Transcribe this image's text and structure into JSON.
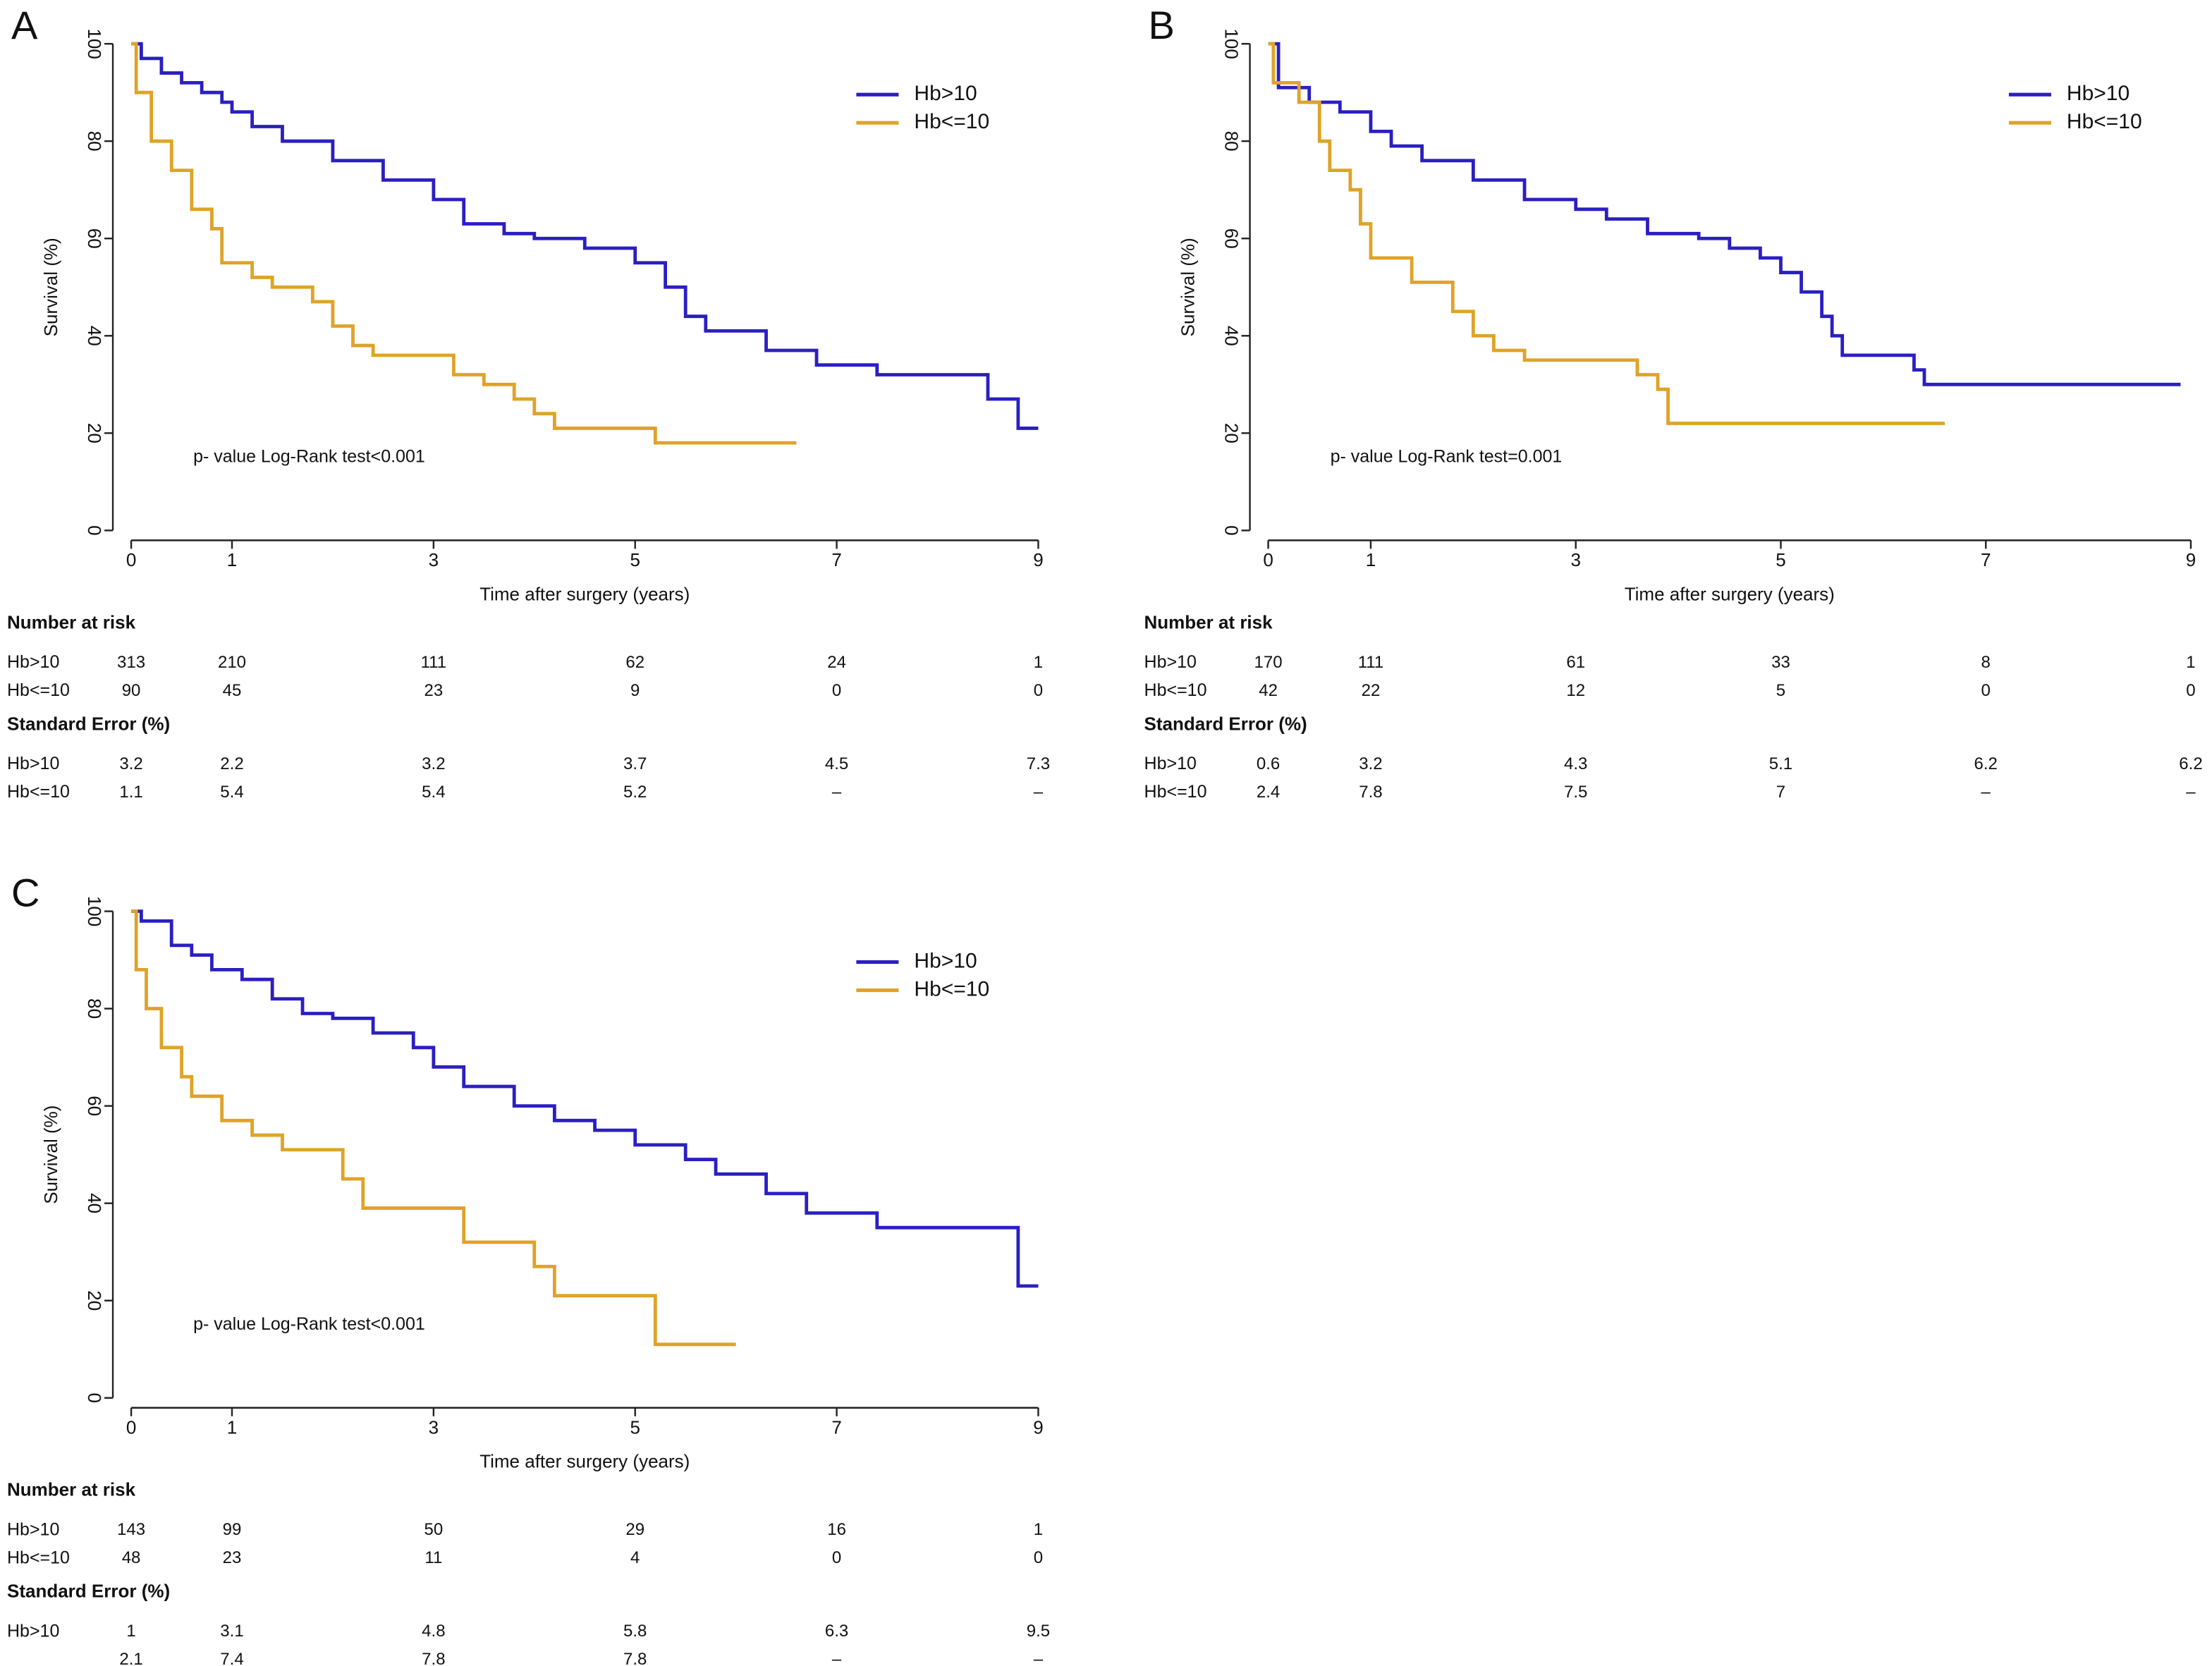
{
  "chart_data": [
    {
      "type": "line",
      "step": true,
      "panel_label": "A",
      "xlabel": "Time after surgery (years)",
      "ylabel": "Survival (%)",
      "annotation": "p- value Log-Rank test<0.001",
      "xlim": [
        0,
        9
      ],
      "ylim": [
        0,
        100
      ],
      "xticks": [
        0,
        1,
        3,
        5,
        7,
        9
      ],
      "yticks": [
        0,
        20,
        40,
        60,
        80,
        100
      ],
      "legend": "upper right",
      "series": [
        {
          "name": "Hb>10",
          "color": "#2b1fc2",
          "x": [
            0,
            0.1,
            0.3,
            0.5,
            0.7,
            0.9,
            1.0,
            1.2,
            1.5,
            2,
            2.5,
            3,
            3.3,
            3.7,
            4,
            4.5,
            5,
            5.3,
            5.5,
            5.7,
            6.3,
            6.8,
            7.4,
            8.5,
            8.8,
            9
          ],
          "values": [
            100,
            97,
            94,
            92,
            90,
            88,
            86,
            83,
            80,
            76,
            72,
            68,
            63,
            61,
            60,
            58,
            55,
            50,
            44,
            41,
            37,
            34,
            32,
            27,
            21,
            21
          ]
        },
        {
          "name": "Hb<=10",
          "color": "#dfa327",
          "x": [
            0,
            0.05,
            0.2,
            0.4,
            0.6,
            0.8,
            0.9,
            1.2,
            1.4,
            1.8,
            2,
            2.2,
            2.4,
            3.2,
            3.5,
            3.8,
            4,
            4.2,
            5.2,
            6.6
          ],
          "values": [
            100,
            90,
            80,
            74,
            66,
            62,
            55,
            52,
            50,
            47,
            42,
            38,
            36,
            32,
            30,
            27,
            24,
            21,
            18,
            18
          ]
        }
      ],
      "risk_table": [
        {
          "title": "Number at risk",
          "rows": [
            {
              "label": "Hb>10",
              "values": [
                313,
                210,
                111,
                62,
                24,
                1
              ]
            },
            {
              "label": "Hb<=10",
              "values": [
                90,
                45,
                23,
                9,
                0,
                0
              ]
            }
          ]
        },
        {
          "title": "Standard Error (%)",
          "rows": [
            {
              "label": "Hb>10",
              "values": [
                3.2,
                2.2,
                3.2,
                3.7,
                4.5,
                7.3
              ]
            },
            {
              "label": "Hb<=10",
              "values": [
                1.1,
                5.4,
                5.4,
                5.2,
                "–",
                "–"
              ]
            }
          ]
        }
      ]
    },
    {
      "type": "line",
      "step": true,
      "panel_label": "B",
      "xlabel": "Time after surgery (years)",
      "ylabel": "Survival (%)",
      "annotation": "p- value Log-Rank test=0.001",
      "xlim": [
        0,
        9
      ],
      "ylim": [
        0,
        100
      ],
      "xticks": [
        0,
        1,
        3,
        5,
        7,
        9
      ],
      "yticks": [
        0,
        20,
        40,
        60,
        80,
        100
      ],
      "legend": "upper right",
      "series": [
        {
          "name": "Hb>10",
          "color": "#2b1fc2",
          "x": [
            0,
            0.1,
            0.4,
            0.7,
            1.0,
            1.2,
            1.5,
            2,
            2.5,
            3,
            3.3,
            3.7,
            4.2,
            4.5,
            4.8,
            5,
            5.2,
            5.4,
            5.5,
            5.6,
            6.3,
            6.4,
            8.9
          ],
          "values": [
            100,
            91,
            88,
            86,
            82,
            79,
            76,
            72,
            68,
            66,
            64,
            61,
            60,
            58,
            56,
            53,
            49,
            44,
            40,
            36,
            33,
            30,
            30
          ]
        },
        {
          "name": "Hb<=10",
          "color": "#dfa327",
          "x": [
            0,
            0.05,
            0.3,
            0.5,
            0.6,
            0.8,
            0.9,
            1.0,
            1.4,
            1.8,
            2.0,
            2.2,
            2.5,
            3.6,
            3.8,
            3.9,
            6.6
          ],
          "values": [
            100,
            92,
            88,
            80,
            74,
            70,
            63,
            56,
            51,
            45,
            40,
            37,
            35,
            32,
            29,
            22,
            22
          ]
        }
      ],
      "risk_table": [
        {
          "title": "Number at risk",
          "rows": [
            {
              "label": "Hb>10",
              "values": [
                170,
                111,
                61,
                33,
                8,
                1
              ]
            },
            {
              "label": "Hb<=10",
              "values": [
                42,
                22,
                12,
                5,
                0,
                0
              ]
            }
          ]
        },
        {
          "title": "Standard Error (%)",
          "rows": [
            {
              "label": "Hb>10",
              "values": [
                0.6,
                3.2,
                4.3,
                5.1,
                6.2,
                6.2
              ]
            },
            {
              "label": "Hb<=10",
              "values": [
                2.4,
                7.8,
                7.5,
                7,
                "–",
                "–"
              ]
            }
          ]
        }
      ]
    },
    {
      "type": "line",
      "step": true,
      "panel_label": "C",
      "xlabel": "Time after surgery (years)",
      "ylabel": "Survival (%)",
      "annotation": "p- value Log-Rank test<0.001",
      "xlim": [
        0,
        9
      ],
      "ylim": [
        0,
        100
      ],
      "xticks": [
        0,
        1,
        3,
        5,
        7,
        9
      ],
      "yticks": [
        0,
        20,
        40,
        60,
        80,
        100
      ],
      "legend": "upper right",
      "series": [
        {
          "name": "Hb>10",
          "color": "#2b1fc2",
          "x": [
            0,
            0.1,
            0.4,
            0.6,
            0.8,
            1.1,
            1.4,
            1.7,
            2,
            2.4,
            2.8,
            3.0,
            3.3,
            3.8,
            4.2,
            4.6,
            5.0,
            5.5,
            5.8,
            6.3,
            6.7,
            7.4,
            8.8,
            9
          ],
          "values": [
            100,
            98,
            93,
            91,
            88,
            86,
            82,
            79,
            78,
            75,
            72,
            68,
            64,
            60,
            57,
            55,
            52,
            49,
            46,
            42,
            38,
            35,
            23,
            23
          ]
        },
        {
          "name": "Hb<=10",
          "color": "#dfa327",
          "x": [
            0,
            0.05,
            0.15,
            0.3,
            0.5,
            0.6,
            0.9,
            1.2,
            1.5,
            2.1,
            2.3,
            3.3,
            4.0,
            4.2,
            5.2,
            6.0
          ],
          "values": [
            100,
            88,
            80,
            72,
            66,
            62,
            57,
            54,
            51,
            45,
            39,
            32,
            27,
            21,
            11,
            11
          ]
        }
      ],
      "risk_table": [
        {
          "title": "Number at risk",
          "rows": [
            {
              "label": "Hb>10",
              "values": [
                143,
                99,
                50,
                29,
                16,
                1
              ]
            },
            {
              "label": "Hb<=10",
              "values": [
                48,
                23,
                11,
                4,
                0,
                0
              ]
            }
          ]
        },
        {
          "title": "Standard Error (%)",
          "rows": [
            {
              "label": "Hb>10",
              "values": [
                1,
                3.1,
                4.8,
                5.8,
                6.3,
                9.5
              ]
            },
            {
              "label": null,
              "values": [
                2.1,
                7.4,
                7.8,
                7.8,
                "–",
                "–"
              ]
            }
          ]
        }
      ]
    }
  ]
}
